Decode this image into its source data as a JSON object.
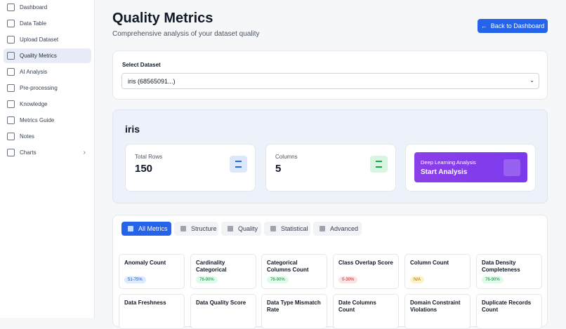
{
  "nav": [
    {
      "label": "Dashboard"
    },
    {
      "label": "Data Table"
    },
    {
      "label": "Upload Dataset"
    },
    {
      "label": "Quality Metrics",
      "active": true
    },
    {
      "label": "AI Analysis"
    },
    {
      "label": "Pre-processing"
    },
    {
      "label": "Knowledge"
    },
    {
      "label": "Metrics Guide"
    },
    {
      "label": "Notes"
    },
    {
      "label": "Charts"
    }
  ],
  "header": {
    "title": "Quality Metrics",
    "subtitle": "Comprehensive analysis of your dataset quality",
    "button": "Back to Dashboard"
  },
  "select": {
    "label": "Select Dataset",
    "value": "iris (68565091...)"
  },
  "dataset": {
    "name": "iris",
    "stats": [
      {
        "label": "Total Rows",
        "value": "150"
      },
      {
        "label": "Columns",
        "value": "5"
      }
    ],
    "action": {
      "label": "Deep Learning Analysis",
      "button": "Start Analysis"
    }
  },
  "tabs": [
    {
      "label": "All Metrics",
      "active": true
    },
    {
      "label": "Structure"
    },
    {
      "label": "Quality"
    },
    {
      "label": "Statistical"
    },
    {
      "label": "Advanced"
    }
  ],
  "metrics": [
    {
      "name": "Anomaly Count",
      "badge": "51-75%",
      "color": "blue"
    },
    {
      "name": "Cardinality Categorical",
      "badge": "76-90%",
      "color": "green"
    },
    {
      "name": "Categorical Columns Count",
      "badge": "76-90%",
      "color": "green"
    },
    {
      "name": "Class Overlap Score",
      "badge": "0-30%",
      "color": "red"
    },
    {
      "name": "Column Count",
      "badge": "N/A",
      "color": "yellow"
    },
    {
      "name": "Data Density Completeness",
      "badge": "76-90%",
      "color": "green"
    },
    {
      "name": "Data Freshness"
    },
    {
      "name": "Data Quality Score"
    },
    {
      "name": "Data Type Mismatch Rate"
    },
    {
      "name": "Date Columns Count"
    },
    {
      "name": "Domain Constraint Violations"
    },
    {
      "name": "Duplicate Records Count"
    }
  ]
}
